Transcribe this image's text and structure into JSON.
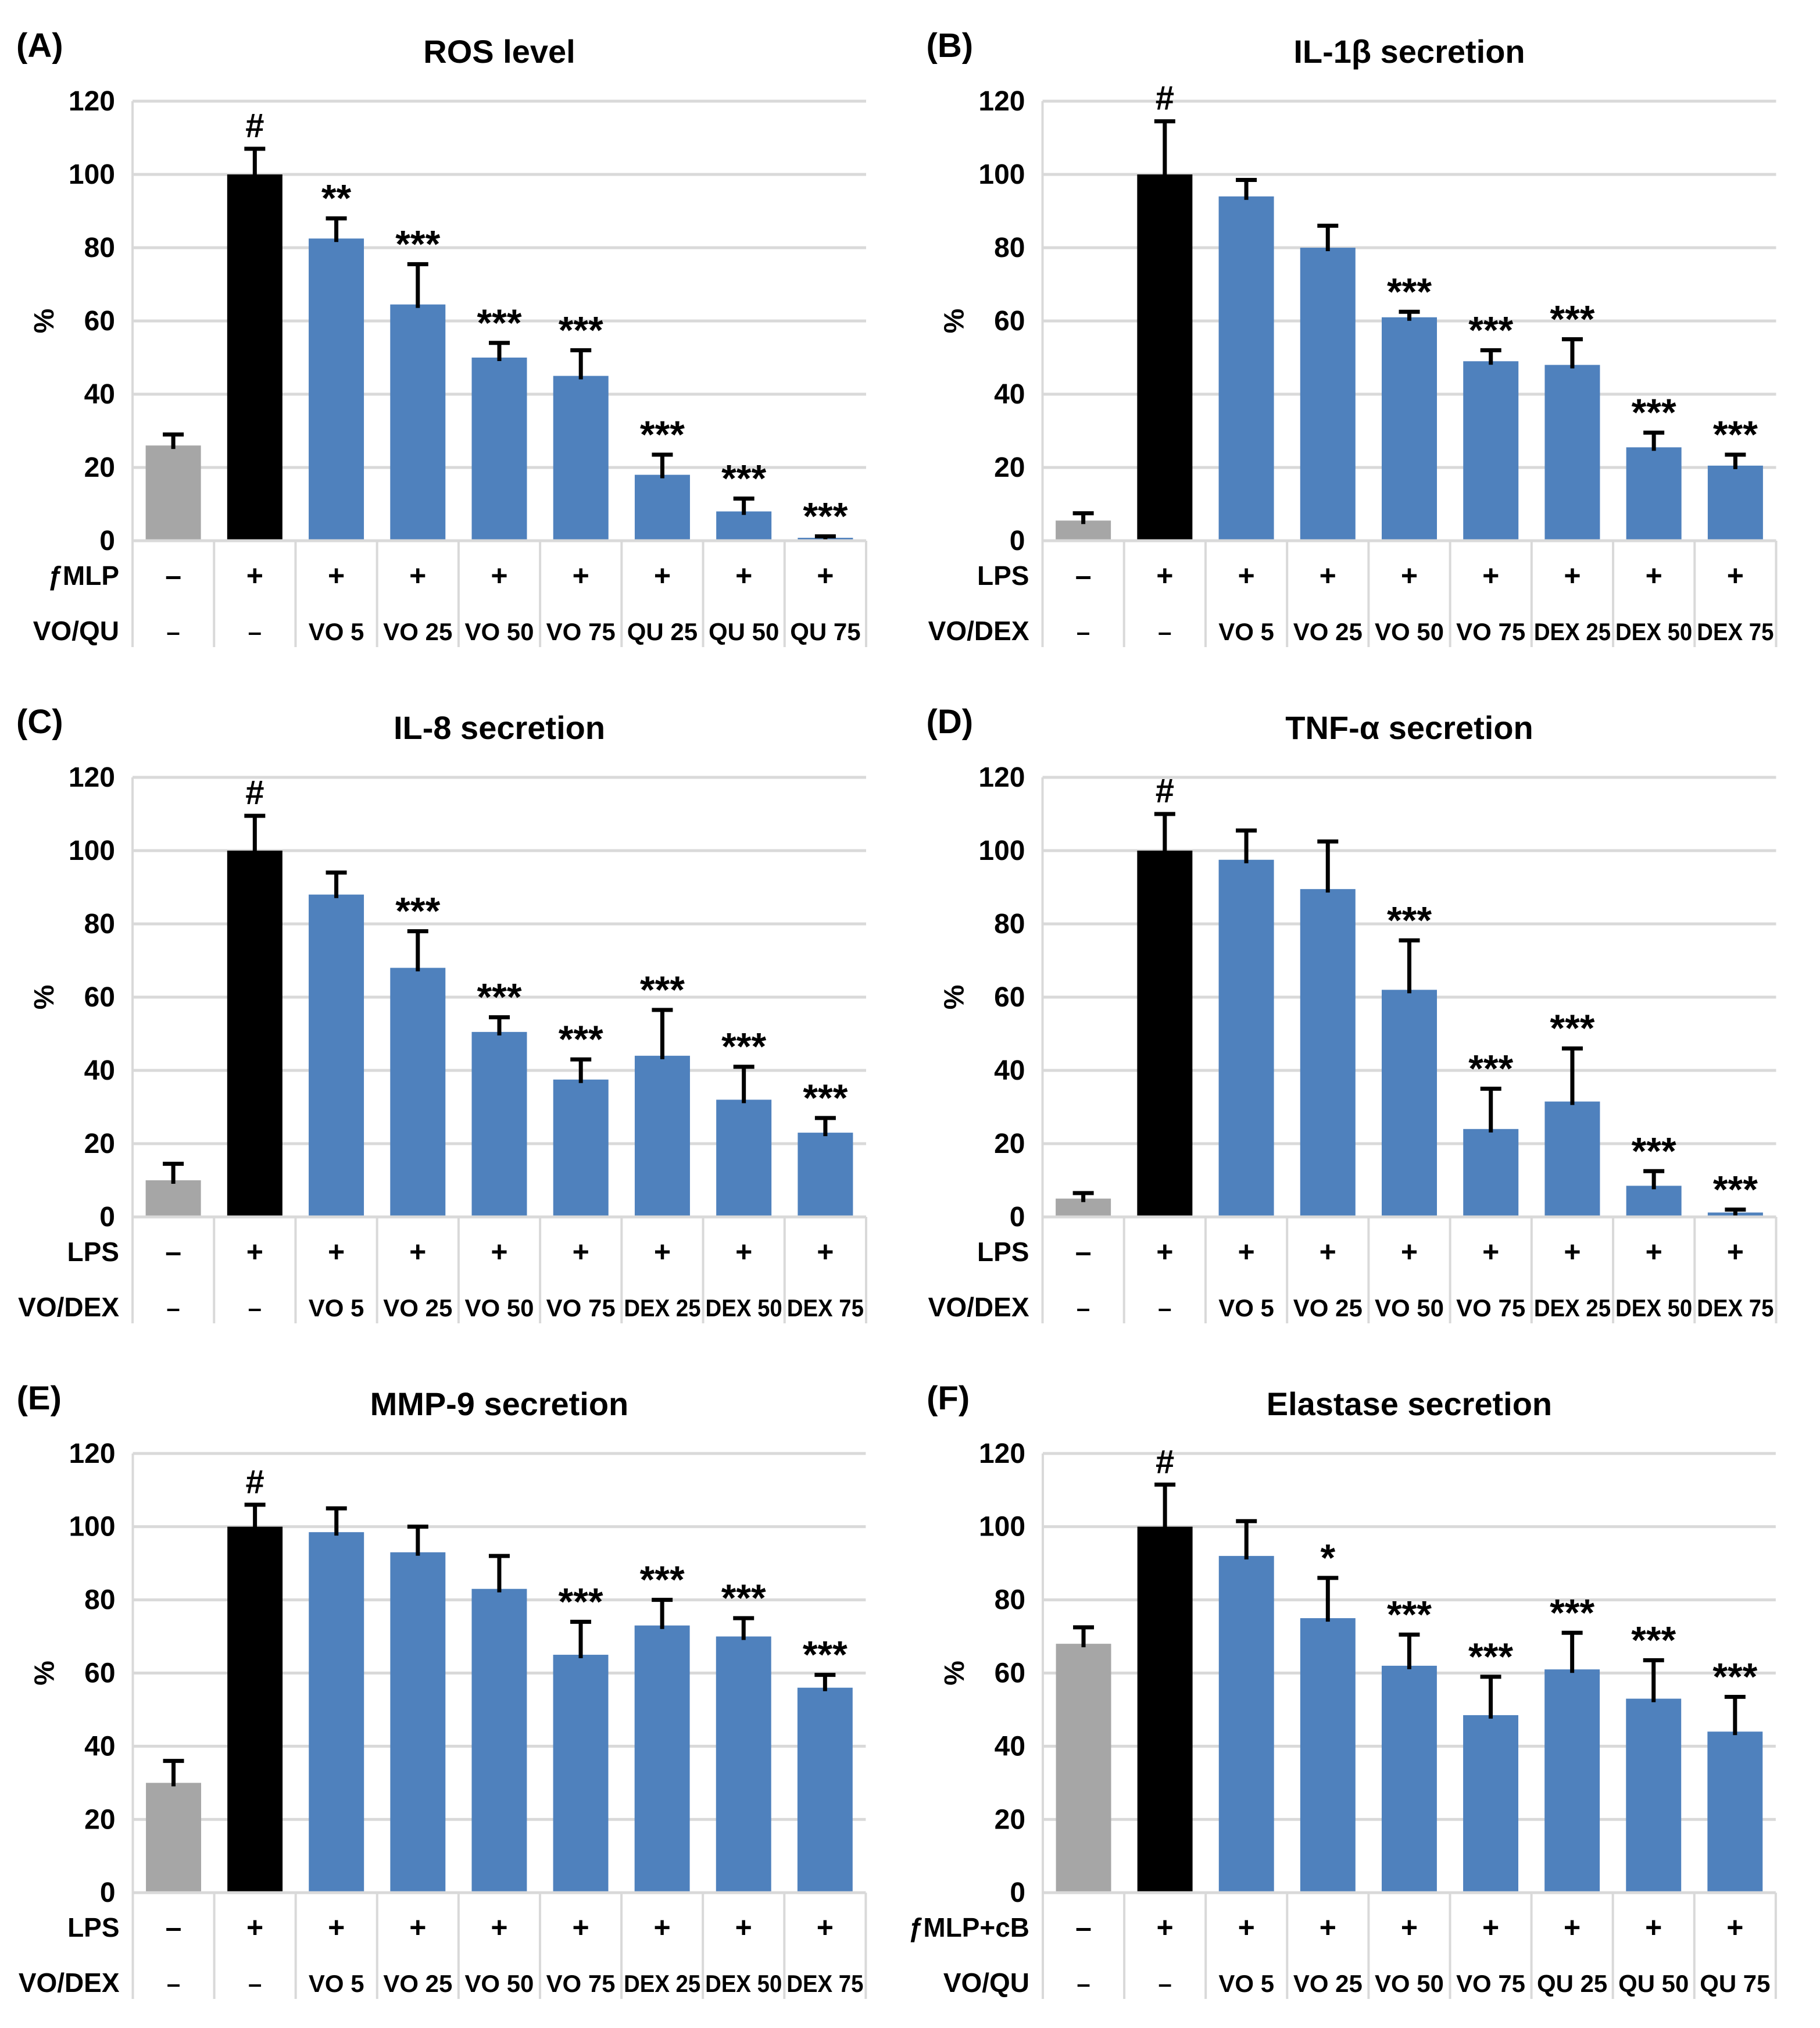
{
  "colors": {
    "control_bar": "#A6A6A6",
    "stimulus_bar": "#000000",
    "treatment_bar": "#4F81BD",
    "gridline": "#D9D9D9",
    "axis_line": "#D9D9D9",
    "table_border": "#D9D9D9",
    "error_bar": "#000000",
    "text": "#000000",
    "background": "#FFFFFF"
  },
  "chart_data": [
    {
      "type": "bar",
      "panel_letter": "(A)",
      "title": "ROS level",
      "ylabel": "%",
      "ylim": [
        0,
        120
      ],
      "ytick_step": 20,
      "grid": true,
      "legend_position": "none",
      "stim_row_label": "ƒMLP",
      "treat_row_label": "VO/QU",
      "bars": [
        {
          "stim": "–",
          "treat": "–",
          "value": 26,
          "error": 3,
          "bar": "control",
          "sig": ""
        },
        {
          "stim": "+",
          "treat": "–",
          "value": 100,
          "error": 7,
          "bar": "stimulus",
          "sig": "#"
        },
        {
          "stim": "+",
          "treat": "VO 5",
          "value": 82.5,
          "error": 5.5,
          "bar": "treatment",
          "sig": "**"
        },
        {
          "stim": "+",
          "treat": "VO 25",
          "value": 64.5,
          "error": 11,
          "bar": "treatment",
          "sig": "***"
        },
        {
          "stim": "+",
          "treat": "VO 50",
          "value": 50,
          "error": 4,
          "bar": "treatment",
          "sig": "***"
        },
        {
          "stim": "+",
          "treat": "VO 75",
          "value": 45,
          "error": 7,
          "bar": "treatment",
          "sig": "***"
        },
        {
          "stim": "+",
          "treat": "QU 25",
          "value": 18,
          "error": 5.5,
          "bar": "treatment",
          "sig": "***"
        },
        {
          "stim": "+",
          "treat": "QU 50",
          "value": 8,
          "error": 3.5,
          "bar": "treatment",
          "sig": "***"
        },
        {
          "stim": "+",
          "treat": "QU 75",
          "value": 0.8,
          "error": 0.4,
          "bar": "treatment",
          "sig": "***"
        }
      ]
    },
    {
      "type": "bar",
      "panel_letter": "(B)",
      "title": "IL-1β secretion",
      "ylabel": "%",
      "ylim": [
        0,
        120
      ],
      "ytick_step": 20,
      "grid": true,
      "legend_position": "none",
      "stim_row_label": "LPS",
      "treat_row_label": "VO/DEX",
      "bars": [
        {
          "stim": "–",
          "treat": "–",
          "value": 5.5,
          "error": 2,
          "bar": "control",
          "sig": ""
        },
        {
          "stim": "+",
          "treat": "–",
          "value": 100,
          "error": 14.5,
          "bar": "stimulus",
          "sig": "#"
        },
        {
          "stim": "+",
          "treat": "VO 5",
          "value": 94,
          "error": 4.5,
          "bar": "treatment",
          "sig": ""
        },
        {
          "stim": "+",
          "treat": "VO 25",
          "value": 80,
          "error": 6,
          "bar": "treatment",
          "sig": ""
        },
        {
          "stim": "+",
          "treat": "VO 50",
          "value": 61,
          "error": 1.5,
          "bar": "treatment",
          "sig": "***"
        },
        {
          "stim": "+",
          "treat": "VO 75",
          "value": 49,
          "error": 3,
          "bar": "treatment",
          "sig": "***"
        },
        {
          "stim": "+",
          "treat": "DEX 25",
          "value": 48,
          "error": 7,
          "bar": "treatment",
          "sig": "***"
        },
        {
          "stim": "+",
          "treat": "DEX 50",
          "value": 25.5,
          "error": 4,
          "bar": "treatment",
          "sig": "***"
        },
        {
          "stim": "+",
          "treat": "DEX 75",
          "value": 20.5,
          "error": 3,
          "bar": "treatment",
          "sig": "***"
        }
      ]
    },
    {
      "type": "bar",
      "panel_letter": "(C)",
      "title": "IL-8 secretion",
      "ylabel": "%",
      "ylim": [
        0,
        120
      ],
      "ytick_step": 20,
      "grid": true,
      "legend_position": "none",
      "stim_row_label": "LPS",
      "treat_row_label": "VO/DEX",
      "bars": [
        {
          "stim": "–",
          "treat": "–",
          "value": 10,
          "error": 4.5,
          "bar": "control",
          "sig": ""
        },
        {
          "stim": "+",
          "treat": "–",
          "value": 100,
          "error": 9.5,
          "bar": "stimulus",
          "sig": "#"
        },
        {
          "stim": "+",
          "treat": "VO 5",
          "value": 88,
          "error": 6,
          "bar": "treatment",
          "sig": ""
        },
        {
          "stim": "+",
          "treat": "VO 25",
          "value": 68,
          "error": 10,
          "bar": "treatment",
          "sig": "***"
        },
        {
          "stim": "+",
          "treat": "VO 50",
          "value": 50.5,
          "error": 4,
          "bar": "treatment",
          "sig": "***"
        },
        {
          "stim": "+",
          "treat": "VO 75",
          "value": 37.5,
          "error": 5.5,
          "bar": "treatment",
          "sig": "***"
        },
        {
          "stim": "+",
          "treat": "DEX 25",
          "value": 44,
          "error": 12.5,
          "bar": "treatment",
          "sig": "***"
        },
        {
          "stim": "+",
          "treat": "DEX 50",
          "value": 32,
          "error": 9,
          "bar": "treatment",
          "sig": "***"
        },
        {
          "stim": "+",
          "treat": "DEX 75",
          "value": 23,
          "error": 4,
          "bar": "treatment",
          "sig": "***"
        }
      ]
    },
    {
      "type": "bar",
      "panel_letter": "(D)",
      "title": "TNF-α secretion",
      "ylabel": "%",
      "ylim": [
        0,
        120
      ],
      "ytick_step": 20,
      "grid": true,
      "legend_position": "none",
      "stim_row_label": "LPS",
      "treat_row_label": "VO/DEX",
      "bars": [
        {
          "stim": "–",
          "treat": "–",
          "value": 5,
          "error": 1.5,
          "bar": "control",
          "sig": ""
        },
        {
          "stim": "+",
          "treat": "–",
          "value": 100,
          "error": 10,
          "bar": "stimulus",
          "sig": "#"
        },
        {
          "stim": "+",
          "treat": "VO 5",
          "value": 97.5,
          "error": 8,
          "bar": "treatment",
          "sig": ""
        },
        {
          "stim": "+",
          "treat": "VO 25",
          "value": 89.5,
          "error": 13,
          "bar": "treatment",
          "sig": ""
        },
        {
          "stim": "+",
          "treat": "VO 50",
          "value": 62,
          "error": 13.5,
          "bar": "treatment",
          "sig": "***"
        },
        {
          "stim": "+",
          "treat": "VO 75",
          "value": 24,
          "error": 11,
          "bar": "treatment",
          "sig": "***"
        },
        {
          "stim": "+",
          "treat": "DEX 25",
          "value": 31.5,
          "error": 14.5,
          "bar": "treatment",
          "sig": "***"
        },
        {
          "stim": "+",
          "treat": "DEX 50",
          "value": 8.5,
          "error": 4,
          "bar": "treatment",
          "sig": "***"
        },
        {
          "stim": "+",
          "treat": "DEX 75",
          "value": 1.2,
          "error": 0.8,
          "bar": "treatment",
          "sig": "***"
        }
      ]
    },
    {
      "type": "bar",
      "panel_letter": "(E)",
      "title": "MMP-9 secretion",
      "ylabel": "%",
      "ylim": [
        0,
        120
      ],
      "ytick_step": 20,
      "grid": true,
      "legend_position": "none",
      "stim_row_label": "LPS",
      "treat_row_label": "VO/DEX",
      "bars": [
        {
          "stim": "–",
          "treat": "–",
          "value": 30,
          "error": 6,
          "bar": "control",
          "sig": ""
        },
        {
          "stim": "+",
          "treat": "–",
          "value": 100,
          "error": 6,
          "bar": "stimulus",
          "sig": "#"
        },
        {
          "stim": "+",
          "treat": "VO 5",
          "value": 98.5,
          "error": 6.5,
          "bar": "treatment",
          "sig": ""
        },
        {
          "stim": "+",
          "treat": "VO 25",
          "value": 93,
          "error": 7,
          "bar": "treatment",
          "sig": ""
        },
        {
          "stim": "+",
          "treat": "VO 50",
          "value": 83,
          "error": 9,
          "bar": "treatment",
          "sig": ""
        },
        {
          "stim": "+",
          "treat": "VO 75",
          "value": 65,
          "error": 9,
          "bar": "treatment",
          "sig": "***"
        },
        {
          "stim": "+",
          "treat": "DEX 25",
          "value": 73,
          "error": 7,
          "bar": "treatment",
          "sig": "***"
        },
        {
          "stim": "+",
          "treat": "DEX 50",
          "value": 70,
          "error": 5,
          "bar": "treatment",
          "sig": "***"
        },
        {
          "stim": "+",
          "treat": "DEX 75",
          "value": 56,
          "error": 3.5,
          "bar": "treatment",
          "sig": "***"
        }
      ]
    },
    {
      "type": "bar",
      "panel_letter": "(F)",
      "title": "Elastase secretion",
      "ylabel": "%",
      "ylim": [
        0,
        120
      ],
      "ytick_step": 20,
      "grid": true,
      "legend_position": "none",
      "stim_row_label": "ƒMLP+cB",
      "treat_row_label": "VO/QU",
      "bars": [
        {
          "stim": "–",
          "treat": "–",
          "value": 68,
          "error": 4.5,
          "bar": "control",
          "sig": ""
        },
        {
          "stim": "+",
          "treat": "–",
          "value": 100,
          "error": 11.5,
          "bar": "stimulus",
          "sig": "#"
        },
        {
          "stim": "+",
          "treat": "VO 5",
          "value": 92,
          "error": 9.5,
          "bar": "treatment",
          "sig": ""
        },
        {
          "stim": "+",
          "treat": "VO 25",
          "value": 75,
          "error": 11,
          "bar": "treatment",
          "sig": "*"
        },
        {
          "stim": "+",
          "treat": "VO 50",
          "value": 62,
          "error": 8.5,
          "bar": "treatment",
          "sig": "***"
        },
        {
          "stim": "+",
          "treat": "VO 75",
          "value": 48.5,
          "error": 10.5,
          "bar": "treatment",
          "sig": "***"
        },
        {
          "stim": "+",
          "treat": "QU 25",
          "value": 61,
          "error": 10,
          "bar": "treatment",
          "sig": "***"
        },
        {
          "stim": "+",
          "treat": "QU 50",
          "value": 53,
          "error": 10.5,
          "bar": "treatment",
          "sig": "***"
        },
        {
          "stim": "+",
          "treat": "QU 75",
          "value": 44,
          "error": 9.5,
          "bar": "treatment",
          "sig": "***"
        }
      ]
    }
  ]
}
